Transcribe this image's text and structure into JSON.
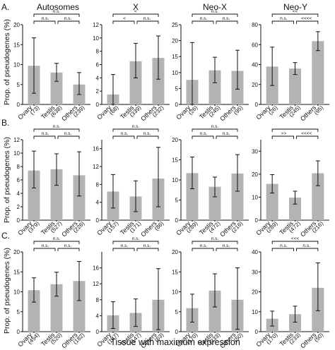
{
  "colors": {
    "bar": "#b3b3b3",
    "axis": "#111111",
    "error": "#111111"
  },
  "column_titles": [
    "Autosomes",
    "X",
    "Neo-X",
    "Neo-Y"
  ],
  "row_labels": [
    "A.",
    "B.",
    "C."
  ],
  "y_axis_label": "Prop. of pseudogenes (%)",
  "x_axis_title": "Tissue with maximum expression",
  "chart_data": [
    {
      "type": "bar",
      "row": "A.",
      "title": "Autosomes",
      "categories": [
        "Ovary",
        "Testis",
        "Others"
      ],
      "counts": [
        "(73)",
        "(638)",
        "(239)"
      ],
      "values": [
        9.7,
        8.0,
        5.0
      ],
      "err_low": [
        2.8,
        5.8,
        2.5
      ],
      "err_high": [
        16.7,
        10.3,
        8.0
      ],
      "ylim": [
        0,
        20
      ],
      "yticks": [
        0,
        5,
        10,
        15,
        20
      ],
      "grid": false,
      "sig": {
        "top": "n.s.",
        "left": "n.s.",
        "right": "n.s."
      }
    },
    {
      "type": "bar",
      "row": "A.",
      "title": "X",
      "categories": [
        "Ovary",
        "Testis",
        "Others"
      ],
      "counts": [
        "(68)",
        "(339)",
        "(232)"
      ],
      "values": [
        1.5,
        6.5,
        7.0
      ],
      "err_low": [
        0,
        4.0,
        3.8
      ],
      "err_high": [
        4.5,
        9.2,
        10.3
      ],
      "ylim": [
        0,
        12
      ],
      "yticks": [
        0,
        2,
        4,
        6,
        8,
        10,
        12
      ],
      "grid": false,
      "sig": {
        "top": "<",
        "left": "<",
        "right": "n.s."
      }
    },
    {
      "type": "bar",
      "row": "A.",
      "title": "Neo-X",
      "categories": [
        "Ovary",
        "Testis",
        "Others"
      ],
      "counts": [
        "(26)",
        "(245)",
        "(95)"
      ],
      "values": [
        7.7,
        10.7,
        10.5
      ],
      "err_low": [
        0,
        6.8,
        4.8
      ],
      "err_high": [
        19.4,
        14.8,
        17.0
      ],
      "ylim": [
        0,
        25
      ],
      "yticks": [
        0,
        5,
        10,
        15,
        20,
        25
      ],
      "grid": false,
      "sig": {
        "top": "n.s.",
        "left": "n.s.",
        "right": "n.s."
      }
    },
    {
      "type": "bar",
      "row": "A.",
      "title": "Neo-Y",
      "categories": [
        "Ovary",
        "Testis",
        "Others"
      ],
      "counts": [
        "(26)",
        "(245)",
        "(95)"
      ],
      "values": [
        38.0,
        36.0,
        63.5
      ],
      "err_low": [
        19.0,
        30.0,
        54.0
      ],
      "err_high": [
        57.5,
        42.0,
        73.0
      ],
      "ylim": [
        0,
        80
      ],
      "yticks": [
        0,
        20,
        40,
        60,
        80
      ],
      "grid": false,
      "sig": {
        "top": "<<",
        "left": "n.s.",
        "right": "<<<<"
      }
    },
    {
      "type": "bar",
      "row": "B.",
      "title": "Autosomes",
      "categories": [
        "Ovary",
        "Testis",
        "Others"
      ],
      "counts": [
        "(379)",
        "(527)",
        "(226)"
      ],
      "values": [
        7.4,
        7.6,
        6.7
      ],
      "err_low": [
        4.8,
        5.2,
        3.6
      ],
      "err_high": [
        10.3,
        9.9,
        10.2
      ],
      "ylim": [
        0,
        12
      ],
      "yticks": [
        0,
        2,
        4,
        6,
        8,
        10,
        12
      ],
      "grid": false,
      "sig": {
        "top": "n.s.",
        "left": "n.s.",
        "right": "n.s."
      }
    },
    {
      "type": "bar",
      "row": "B.",
      "title": "X",
      "categories": [
        "Ovary",
        "Testis",
        "Others"
      ],
      "counts": [
        "(157)",
        "(171)",
        "(86)"
      ],
      "values": [
        6.4,
        5.3,
        9.3
      ],
      "err_low": [
        2.7,
        1.9,
        3.0
      ],
      "err_high": [
        10.2,
        8.8,
        16.3
      ],
      "ylim": [
        0,
        18
      ],
      "yticks": [
        0,
        4,
        8,
        12,
        16
      ],
      "grid": false,
      "sig": {
        "top": "n.s.",
        "left": "n.s.",
        "right": "n.s."
      }
    },
    {
      "type": "bar",
      "row": "B.",
      "title": "Neo-X",
      "categories": [
        "Ovary",
        "Testis",
        "Others"
      ],
      "counts": [
        "(289)",
        "(472)",
        "(216)"
      ],
      "values": [
        11.7,
        8.3,
        11.6
      ],
      "err_low": [
        7.8,
        5.8,
        7.2
      ],
      "err_high": [
        15.7,
        10.7,
        16.3
      ],
      "ylim": [
        0,
        20
      ],
      "yticks": [
        0,
        5,
        10,
        15,
        20
      ],
      "grid": false,
      "sig": {
        "top": "n.s.",
        "left": "n.s.",
        "right": "n.s."
      }
    },
    {
      "type": "bar",
      "row": "B.",
      "title": "Neo-Y",
      "categories": [
        "Ovary",
        "Testis",
        "Others"
      ],
      "counts": [
        "(289)",
        "(472)",
        "(216)"
      ],
      "values": [
        15.8,
        9.8,
        20.4
      ],
      "err_low": [
        11.8,
        7.0,
        15.0
      ],
      "err_high": [
        19.8,
        12.6,
        25.8
      ],
      "ylim": [
        0,
        35
      ],
      "yticks": [
        0,
        10,
        20,
        30
      ],
      "grid": false,
      "sig": {
        "top": "",
        "left": ">>",
        "right": "<<<<"
      }
    },
    {
      "type": "bar",
      "row": "C.",
      "title": "Autosomes",
      "categories": [
        "Ovary",
        "Testis",
        "Others"
      ],
      "counts": [
        "(454)",
        "(520)",
        "(182)"
      ],
      "values": [
        10.4,
        11.9,
        12.7
      ],
      "err_low": [
        7.4,
        8.9,
        7.8
      ],
      "err_high": [
        13.5,
        14.9,
        17.6
      ],
      "ylim": [
        0,
        20
      ],
      "yticks": [
        0,
        5,
        10,
        15,
        20
      ],
      "grid": false,
      "sig": {
        "top": "n.s.",
        "left": "n.s.",
        "right": "n.s."
      }
    },
    {
      "type": "bar",
      "row": "C.",
      "title": "X",
      "categories": [
        "Ovary",
        "Testis",
        "Others"
      ],
      "counts": [
        "(147)",
        "(147)",
        "(63)"
      ],
      "values": [
        4.1,
        4.7,
        8.0
      ],
      "err_low": [
        0.8,
        1.3,
        0.5
      ],
      "err_high": [
        7.5,
        8.2,
        15.8
      ],
      "ylim": [
        0,
        20
      ],
      "yticks": [
        0,
        4,
        8,
        12,
        16
      ],
      "grid": false,
      "sig": {
        "top": "n.s.",
        "left": "n.s.",
        "right": "n.s."
      }
    },
    {
      "type": "bar",
      "row": "C.",
      "title": "Neo-X",
      "categories": [
        "Ovary",
        "Testis",
        "Others"
      ],
      "counts": [
        "(170)",
        "(233)",
        "(50)"
      ],
      "values": [
        5.9,
        10.3,
        8.0
      ],
      "err_low": [
        2.4,
        6.2,
        0.6
      ],
      "err_high": [
        9.4,
        14.5,
        16.0
      ],
      "ylim": [
        0,
        20
      ],
      "yticks": [
        0,
        5,
        10,
        15,
        20
      ],
      "grid": false,
      "sig": {
        "top": "n.s.",
        "left": "n.s.",
        "right": "n.s."
      }
    },
    {
      "type": "bar",
      "row": "C.",
      "title": "Neo-Y",
      "categories": [
        "Ovary",
        "Testis",
        "Others"
      ],
      "counts": [
        "(170)",
        "(233)",
        "(50)"
      ],
      "values": [
        6.5,
        8.8,
        22.0
      ],
      "err_low": [
        2.8,
        4.8,
        10.5
      ],
      "err_high": [
        10.3,
        12.8,
        34.5
      ],
      "ylim": [
        0,
        40
      ],
      "yticks": [
        0,
        10,
        20,
        30,
        40
      ],
      "grid": false,
      "sig": {
        "top": "<<<",
        "left": "n.s.",
        "right": "n.s."
      }
    }
  ]
}
